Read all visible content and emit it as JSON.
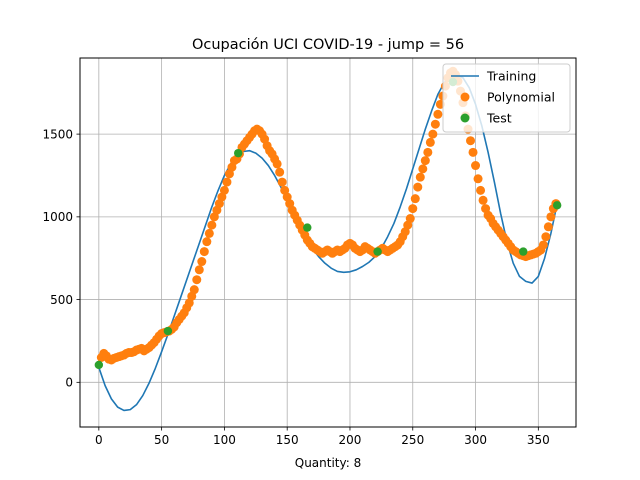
{
  "chart_data": {
    "type": "line",
    "title": "Ocupación UCI COVID-19 - jump = 56",
    "xlabel": "Quantity: 8",
    "ylabel": "",
    "xlim": [
      -15,
      380
    ],
    "ylim": [
      -270,
      1960
    ],
    "xticks": [
      0,
      50,
      100,
      150,
      200,
      250,
      300,
      350
    ],
    "yticks": [
      0,
      500,
      1000,
      1500
    ],
    "grid": true,
    "legend_position": "top-right",
    "series": [
      {
        "name": "Training",
        "kind": "line",
        "color": "#1f77b4",
        "x": [
          0,
          5,
          10,
          15,
          20,
          25,
          30,
          35,
          40,
          45,
          50,
          55,
          60,
          65,
          70,
          75,
          80,
          85,
          90,
          95,
          100,
          105,
          110,
          115,
          120,
          125,
          130,
          135,
          140,
          145,
          150,
          155,
          160,
          165,
          170,
          175,
          180,
          185,
          190,
          195,
          200,
          205,
          210,
          215,
          220,
          225,
          230,
          235,
          240,
          245,
          250,
          255,
          260,
          265,
          270,
          275,
          280,
          285,
          290,
          295,
          300,
          305,
          310,
          315,
          320,
          325,
          330,
          335,
          340,
          345,
          350,
          355,
          360,
          365
        ],
        "y": [
          90,
          -20,
          -100,
          -150,
          -170,
          -165,
          -135,
          -80,
          -5,
          85,
          185,
          290,
          400,
          510,
          620,
          730,
          840,
          950,
          1060,
          1160,
          1250,
          1320,
          1370,
          1395,
          1400,
          1385,
          1355,
          1310,
          1250,
          1180,
          1100,
          1020,
          940,
          870,
          810,
          760,
          720,
          690,
          670,
          665,
          668,
          680,
          700,
          725,
          760,
          810,
          880,
          960,
          1060,
          1170,
          1290,
          1410,
          1530,
          1640,
          1740,
          1810,
          1850,
          1860,
          1840,
          1780,
          1680,
          1550,
          1390,
          1210,
          1020,
          850,
          720,
          640,
          610,
          600,
          640,
          750,
          900,
          1080
        ]
      },
      {
        "name": "Polynomial",
        "kind": "scatter",
        "color": "#ff7f0e",
        "x": [
          2,
          4,
          6,
          8,
          10,
          12,
          14,
          16,
          18,
          20,
          22,
          24,
          26,
          28,
          30,
          32,
          34,
          36,
          38,
          40,
          42,
          44,
          46,
          48,
          50,
          52,
          54,
          56,
          58,
          60,
          62,
          64,
          66,
          68,
          70,
          72,
          74,
          76,
          78,
          80,
          82,
          84,
          86,
          88,
          90,
          92,
          94,
          96,
          98,
          100,
          102,
          104,
          106,
          108,
          110,
          112,
          114,
          116,
          118,
          120,
          122,
          124,
          126,
          128,
          130,
          132,
          134,
          136,
          138,
          140,
          142,
          144,
          146,
          148,
          150,
          152,
          154,
          156,
          158,
          160,
          162,
          164,
          166,
          168,
          170,
          172,
          174,
          176,
          178,
          180,
          182,
          184,
          186,
          188,
          190,
          192,
          194,
          196,
          198,
          200,
          202,
          204,
          206,
          208,
          210,
          212,
          214,
          216,
          218,
          220,
          222,
          224,
          226,
          228,
          230,
          232,
          234,
          236,
          238,
          240,
          242,
          244,
          246,
          248,
          250,
          252,
          254,
          256,
          258,
          260,
          262,
          264,
          266,
          268,
          270,
          272,
          274,
          276,
          278,
          280,
          282,
          284,
          286,
          288,
          290,
          292,
          294,
          296,
          298,
          300,
          302,
          304,
          306,
          308,
          310,
          312,
          314,
          316,
          318,
          320,
          322,
          324,
          326,
          328,
          330,
          332,
          334,
          336,
          338,
          340,
          342,
          344,
          346,
          348,
          350,
          352,
          354,
          356,
          358,
          360,
          362,
          364
        ],
        "y": [
          150,
          175,
          160,
          140,
          135,
          145,
          150,
          155,
          160,
          165,
          175,
          180,
          180,
          185,
          195,
          200,
          205,
          190,
          200,
          210,
          225,
          240,
          260,
          280,
          295,
          300,
          305,
          310,
          320,
          335,
          360,
          380,
          400,
          420,
          450,
          480,
          520,
          560,
          620,
          680,
          730,
          790,
          850,
          900,
          950,
          1000,
          1040,
          1080,
          1120,
          1160,
          1210,
          1260,
          1300,
          1340,
          1350,
          1380,
          1420,
          1440,
          1460,
          1480,
          1500,
          1520,
          1530,
          1520,
          1500,
          1470,
          1430,
          1400,
          1380,
          1350,
          1320,
          1270,
          1210,
          1160,
          1120,
          1080,
          1040,
          1010,
          980,
          950,
          920,
          890,
          860,
          840,
          820,
          810,
          800,
          790,
          780,
          790,
          800,
          790,
          780,
          790,
          800,
          790,
          800,
          810,
          830,
          840,
          830,
          810,
          800,
          790,
          800,
          820,
          810,
          800,
          790,
          780,
          790,
          800,
          810,
          800,
          790,
          800,
          810,
          820,
          830,
          850,
          880,
          910,
          950,
          990,
          1050,
          1110,
          1180,
          1240,
          1290,
          1340,
          1390,
          1450,
          1500,
          1560,
          1620,
          1680,
          1730,
          1790,
          1840,
          1870,
          1880,
          1860,
          1820,
          1760,
          1690,
          1610,
          1530,
          1460,
          1390,
          1310,
          1230,
          1160,
          1100,
          1050,
          1010,
          990,
          960,
          940,
          920,
          900,
          880,
          860,
          840,
          820,
          800,
          790,
          780,
          770,
          765,
          760,
          765,
          770,
          775,
          780,
          790,
          800,
          830,
          880,
          940,
          1000,
          1050,
          1080
        ]
      },
      {
        "name": "Test",
        "kind": "scatter",
        "color": "#2ca02c",
        "x": [
          0,
          55,
          111,
          166,
          222,
          282,
          338,
          365
        ],
        "y": [
          105,
          310,
          1385,
          935,
          790,
          1815,
          790,
          1070
        ]
      }
    ]
  }
}
